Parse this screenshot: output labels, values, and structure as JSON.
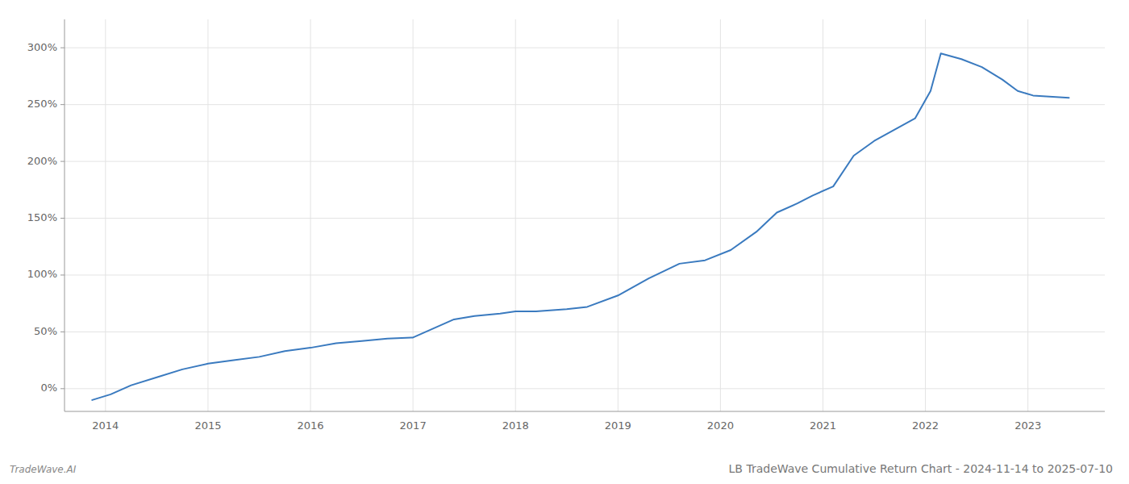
{
  "chart_data": {
    "type": "line",
    "title": "LB TradeWave Cumulative Return Chart - 2024-11-14 to 2025-07-10",
    "annotations": [
      "TradeWave.AI"
    ],
    "color": "#3a7abf",
    "grid": true,
    "x": [
      2013.87,
      2014.05,
      2014.25,
      2014.5,
      2014.75,
      2015.0,
      2015.25,
      2015.5,
      2015.75,
      2016.0,
      2016.25,
      2016.5,
      2016.75,
      2017.0,
      2017.2,
      2017.4,
      2017.6,
      2017.85,
      2018.0,
      2018.2,
      2018.5,
      2018.7,
      2019.0,
      2019.3,
      2019.6,
      2019.85,
      2020.1,
      2020.35,
      2020.55,
      2020.75,
      2020.9,
      2021.1,
      2021.3,
      2021.5,
      2021.7,
      2021.9,
      2022.05,
      2022.15,
      2022.35,
      2022.55,
      2022.75,
      2022.9,
      2023.05,
      2023.4
    ],
    "values": [
      -10,
      -5,
      3,
      10,
      17,
      22,
      25,
      28,
      33,
      36,
      40,
      42,
      44,
      45,
      53,
      61,
      64,
      66,
      68,
      68,
      70,
      72,
      82,
      97,
      110,
      113,
      122,
      138,
      155,
      163,
      170,
      178,
      205,
      218,
      228,
      238,
      262,
      295,
      290,
      283,
      272,
      262,
      258,
      256
    ],
    "xlim": [
      2013.6,
      2023.75
    ],
    "ylim": [
      -20,
      325
    ],
    "xticks": [
      2014,
      2015,
      2016,
      2017,
      2018,
      2019,
      2020,
      2021,
      2022,
      2023
    ],
    "yticks": [
      {
        "value": 0,
        "label": "0%"
      },
      {
        "value": 50,
        "label": "50%"
      },
      {
        "value": 100,
        "label": "100%"
      },
      {
        "value": 150,
        "label": "150%"
      },
      {
        "value": 200,
        "label": "200%"
      },
      {
        "value": 250,
        "label": "250%"
      },
      {
        "value": 300,
        "label": "300%"
      }
    ]
  }
}
